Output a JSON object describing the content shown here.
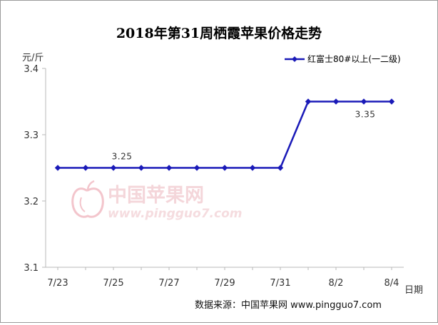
{
  "chart_data": {
    "type": "line",
    "title": "2018年第31周栖霞苹果价格走势",
    "ylabel": "元/斤",
    "xlabel": "日期",
    "ylim": [
      3.1,
      3.4
    ],
    "yticks": [
      "3.1",
      "3.2",
      "3.3",
      "3.4"
    ],
    "x": [
      "7/23",
      "7/24",
      "7/25",
      "7/26",
      "7/27",
      "7/28",
      "7/29",
      "7/30",
      "7/31",
      "8/1",
      "8/2",
      "8/3",
      "8/4"
    ],
    "xtick_labels": [
      "7/23",
      "7/25",
      "7/27",
      "7/29",
      "7/31",
      "8/2",
      "8/4"
    ],
    "series": [
      {
        "name": "红富士80#以上(一二级)",
        "color": "#1a1ab8",
        "marker": "diamond",
        "values": [
          3.25,
          3.25,
          3.25,
          3.25,
          3.25,
          3.25,
          3.25,
          3.25,
          3.25,
          3.35,
          3.35,
          3.35,
          3.35
        ]
      }
    ],
    "annotations": [
      {
        "text": "3.25",
        "x": "7/25",
        "y": 3.25
      },
      {
        "text": "3.35",
        "x": "8/3",
        "y": 3.35
      }
    ],
    "legend": "top-right",
    "grid": false
  },
  "source": {
    "text": "数据来源：中国苹果网 www.pingguo7.com"
  },
  "watermark": {
    "name": "中国苹果网",
    "url": "www.pingguo7.com",
    "color": "#e9a3ad"
  }
}
